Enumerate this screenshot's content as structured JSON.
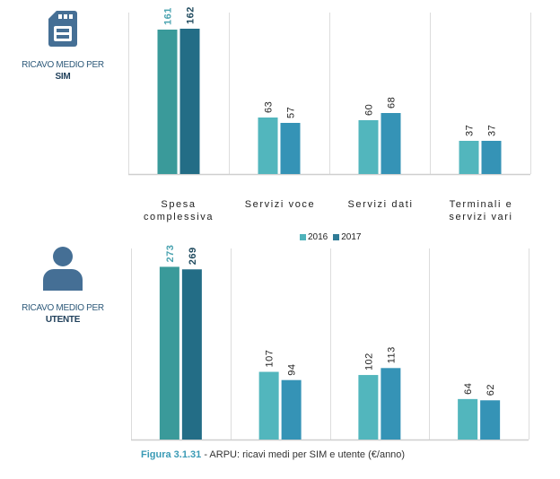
{
  "caption": {
    "figure": "Figura 3.1.31",
    "text": " - ARPU: ricavi medi per SIM e utente (€/anno)"
  },
  "legend": [
    {
      "name": "2016",
      "color": "#4fb3bb"
    },
    {
      "name": "2017",
      "color": "#2f7b96"
    }
  ],
  "colors": {
    "highlight_2016": "#3a9a9a",
    "highlight_2017": "#236d86",
    "series_2016": "#52b6bd",
    "series_2017": "#3593b6",
    "label_highlight_2016": "#4aa3b0",
    "label_highlight_2017": "#1f4a5e",
    "icon": "#456f95"
  },
  "chart_data": [
    {
      "type": "bar",
      "title": "RICAVO MEDIO PER SIM",
      "side_label_line1": "RICAVO MEDIO PER",
      "side_label_line2": "SIM",
      "icon": "sim-card-icon",
      "categories": [
        "Spesa complessiva",
        "Servizi voce",
        "Servizi dati",
        "Terminali e servizi vari"
      ],
      "category_lines": [
        [
          "Spesa",
          "complessiva"
        ],
        [
          "Servizi voce"
        ],
        [
          "Servizi dati"
        ],
        [
          "Terminali e",
          "servizi vari"
        ]
      ],
      "series": [
        {
          "name": "2016",
          "values": [
            161,
            63,
            60,
            37
          ]
        },
        {
          "name": "2017",
          "values": [
            162,
            57,
            68,
            37
          ]
        }
      ],
      "ylim": [
        0,
        180
      ],
      "grid": false,
      "xlabel": "",
      "ylabel": "",
      "legend_position": "bottom-center"
    },
    {
      "type": "bar",
      "title": "RICAVO MEDIO PER UTENTE",
      "side_label_line1": "RICAVO MEDIO PER",
      "side_label_line2": "UTENTE",
      "icon": "user-icon",
      "categories": [
        "Spesa complessiva",
        "Servizi voce",
        "Servizi dati",
        "Terminali e servizi vari"
      ],
      "series": [
        {
          "name": "2016",
          "values": [
            273,
            107,
            102,
            64
          ]
        },
        {
          "name": "2017",
          "values": [
            269,
            94,
            113,
            62
          ]
        }
      ],
      "ylim": [
        0,
        302
      ],
      "grid": false,
      "xlabel": "",
      "ylabel": ""
    }
  ]
}
